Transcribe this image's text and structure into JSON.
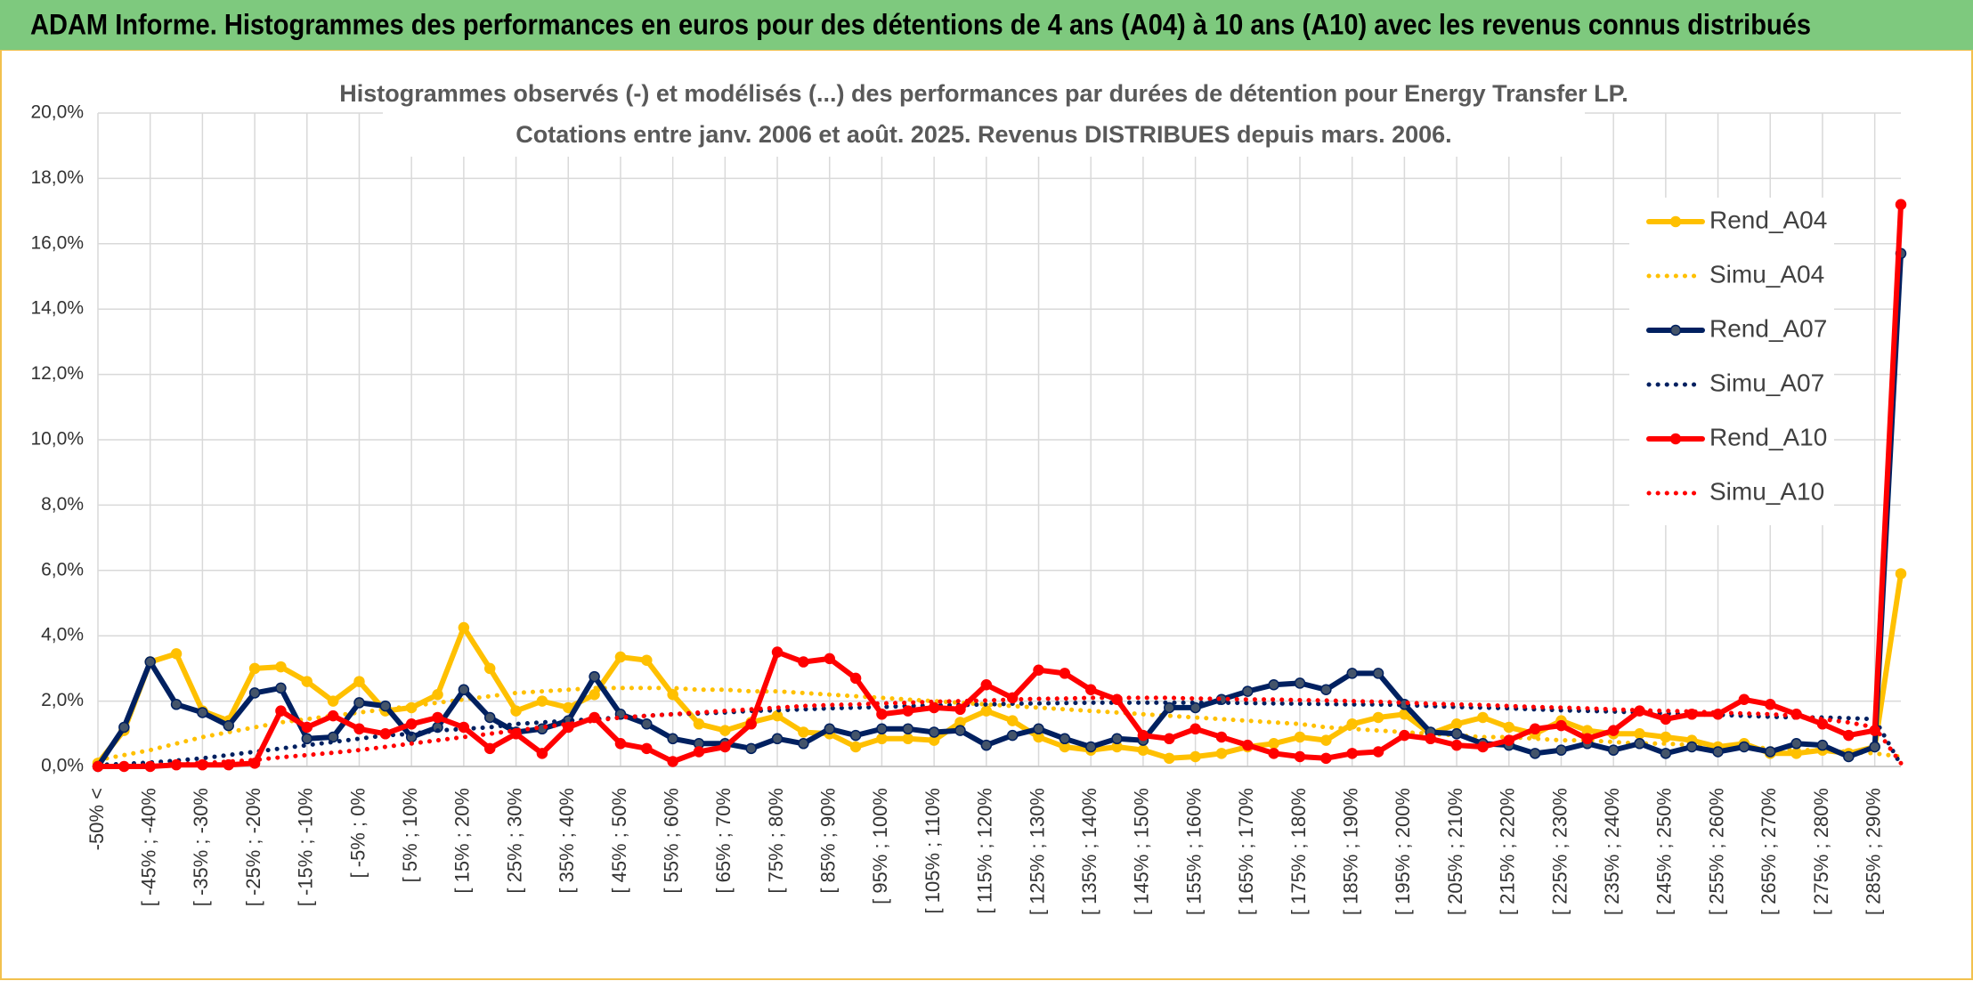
{
  "chart_data": {
    "type": "line",
    "title": "ADAM Informe. Histogrammes des performances en euros pour des détentions de 4 ans (A04) à 10 ans (A10) avec les revenus connus distribués",
    "subtitle": [
      "Histogrammes observés (-) et modélisés (...) des performances par durées de détention pour Energy Transfer LP.",
      "Cotations entre janv. 2006 et août. 2025. Revenus DISTRIBUES depuis mars. 2006."
    ],
    "categories": [
      "-50% <",
      null,
      "[ -45% ; -40%",
      null,
      "[ -35% ; -30%",
      null,
      "[ -25% ; -20%",
      null,
      "[ -15% ; -10%",
      null,
      "[ -5% ; 0%",
      null,
      "[ 5% ; 10%",
      null,
      "[ 15% ; 20%",
      null,
      "[ 25% ; 30%",
      null,
      "[ 35% ; 40%",
      null,
      "[ 45% ; 50%",
      null,
      "[ 55% ; 60%",
      null,
      "[ 65% ; 70%",
      null,
      "[ 75% ; 80%",
      null,
      "[ 85% ; 90%",
      null,
      "[ 95% ; 100%",
      null,
      "[ 105% ; 110%",
      null,
      "[ 115% ; 120%",
      null,
      "[ 125% ; 130%",
      null,
      "[ 135% ; 140%",
      null,
      "[ 145% ; 150%",
      null,
      "[ 155% ; 160%",
      null,
      "[ 165% ; 170%",
      null,
      "[ 175% ; 180%",
      null,
      "[ 185% ; 190%",
      null,
      "[ 195% ; 200%",
      null,
      "[ 205% ; 210%",
      null,
      "[ 215% ; 220%",
      null,
      "[ 225% ; 230%",
      null,
      "[ 235% ; 240%",
      null,
      "[ 245% ; 250%",
      null,
      "[ 255% ; 260%",
      null,
      "[ 265% ; 270%",
      null,
      "[ 275% ; 280%",
      null,
      "[ 285% ; 290%",
      null
    ],
    "ylim": [
      0,
      20
    ],
    "yticks": [
      {
        "value": 0,
        "label": "0,0%"
      },
      {
        "value": 2,
        "label": "2,0%"
      },
      {
        "value": 4,
        "label": "4,0%"
      },
      {
        "value": 6,
        "label": "6,0%"
      },
      {
        "value": 8,
        "label": "8,0%"
      },
      {
        "value": 10,
        "label": "10,0%"
      },
      {
        "value": 12,
        "label": "12,0%"
      },
      {
        "value": 14,
        "label": "14,0%"
      },
      {
        "value": 16,
        "label": "16,0%"
      },
      {
        "value": 18,
        "label": "18,0%"
      },
      {
        "value": 20,
        "label": "20,0%"
      }
    ],
    "grid": true,
    "legend": "right",
    "series": [
      {
        "name": "Rend_A04",
        "color": "#FFC000",
        "line_style": "solid",
        "marker": true,
        "marker_color": "#FFC000",
        "values": [
          0.1,
          1.1,
          3.2,
          3.45,
          1.7,
          1.4,
          3.0,
          3.05,
          2.6,
          2.0,
          2.6,
          1.7,
          1.8,
          2.2,
          4.25,
          3.0,
          1.7,
          2.0,
          1.8,
          2.2,
          3.35,
          3.25,
          2.2,
          1.3,
          1.1,
          1.35,
          1.55,
          1.05,
          1.0,
          0.6,
          0.85,
          0.85,
          0.8,
          1.35,
          1.7,
          1.4,
          0.9,
          0.6,
          0.5,
          0.6,
          0.5,
          0.25,
          0.3,
          0.4,
          0.6,
          0.7,
          0.9,
          0.8,
          1.3,
          1.5,
          1.6,
          1.0,
          1.3,
          1.5,
          1.2,
          1.0,
          1.4,
          1.1,
          1.0,
          1.0,
          0.9,
          0.8,
          0.6,
          0.7,
          0.4,
          0.4,
          0.5,
          0.4,
          0.6,
          5.9
        ]
      },
      {
        "name": "Simu_A04",
        "color": "#FFC000",
        "line_style": "dotted",
        "marker": false,
        "values": [
          0.2,
          0.35,
          0.5,
          0.7,
          0.9,
          1.05,
          1.2,
          1.35,
          1.45,
          1.55,
          1.65,
          1.75,
          1.85,
          1.95,
          2.05,
          2.15,
          2.25,
          2.3,
          2.35,
          2.4,
          2.4,
          2.4,
          2.4,
          2.35,
          2.35,
          2.3,
          2.3,
          2.25,
          2.2,
          2.15,
          2.1,
          2.05,
          2.0,
          1.95,
          1.9,
          1.85,
          1.8,
          1.75,
          1.7,
          1.65,
          1.6,
          1.55,
          1.5,
          1.45,
          1.4,
          1.35,
          1.3,
          1.2,
          1.15,
          1.1,
          1.05,
          1.0,
          0.95,
          0.9,
          0.9,
          0.85,
          0.8,
          0.8,
          0.75,
          0.7,
          0.7,
          0.65,
          0.6,
          0.6,
          0.55,
          0.5,
          0.5,
          0.45,
          0.4,
          0.3
        ]
      },
      {
        "name": "Rend_A07",
        "color": "#002060",
        "line_style": "solid",
        "marker": true,
        "marker_color": "#44546A",
        "values": [
          0.0,
          1.2,
          3.2,
          1.9,
          1.65,
          1.25,
          2.25,
          2.4,
          0.85,
          0.9,
          1.95,
          1.85,
          0.9,
          1.2,
          2.35,
          1.5,
          1.05,
          1.15,
          1.4,
          2.75,
          1.6,
          1.3,
          0.85,
          0.7,
          0.7,
          0.55,
          0.85,
          0.7,
          1.15,
          0.95,
          1.15,
          1.15,
          1.05,
          1.1,
          0.65,
          0.95,
          1.15,
          0.85,
          0.6,
          0.85,
          0.8,
          1.8,
          1.8,
          2.05,
          2.3,
          2.5,
          2.55,
          2.35,
          2.85,
          2.85,
          1.9,
          1.05,
          1.0,
          0.7,
          0.65,
          0.4,
          0.5,
          0.7,
          0.5,
          0.7,
          0.4,
          0.6,
          0.45,
          0.6,
          0.45,
          0.7,
          0.65,
          0.3,
          0.6,
          15.7
        ]
      },
      {
        "name": "Simu_A07",
        "color": "#002060",
        "line_style": "dotted",
        "marker": false,
        "values": [
          0.05,
          0.08,
          0.12,
          0.18,
          0.25,
          0.35,
          0.45,
          0.55,
          0.65,
          0.75,
          0.85,
          0.95,
          1.0,
          1.1,
          1.15,
          1.2,
          1.3,
          1.35,
          1.4,
          1.45,
          1.5,
          1.55,
          1.6,
          1.62,
          1.65,
          1.7,
          1.72,
          1.75,
          1.78,
          1.8,
          1.82,
          1.85,
          1.87,
          1.88,
          1.9,
          1.92,
          1.93,
          1.94,
          1.95,
          1.95,
          1.95,
          1.95,
          1.95,
          1.95,
          1.94,
          1.93,
          1.92,
          1.91,
          1.9,
          1.9,
          1.88,
          1.85,
          1.82,
          1.8,
          1.78,
          1.75,
          1.72,
          1.7,
          1.68,
          1.65,
          1.62,
          1.6,
          1.58,
          1.55,
          1.52,
          1.5,
          1.5,
          1.48,
          1.45,
          0.05
        ]
      },
      {
        "name": "Rend_A10",
        "color": "#FF0000",
        "line_style": "solid",
        "marker": true,
        "marker_color": "#FF0000",
        "values": [
          0.0,
          0.0,
          0.0,
          0.05,
          0.05,
          0.05,
          0.1,
          1.7,
          1.2,
          1.55,
          1.15,
          1.0,
          1.3,
          1.5,
          1.2,
          0.55,
          1.0,
          0.4,
          1.2,
          1.5,
          0.7,
          0.55,
          0.15,
          0.45,
          0.6,
          1.3,
          3.5,
          3.2,
          3.3,
          2.7,
          1.6,
          1.7,
          1.8,
          1.75,
          2.5,
          2.1,
          2.95,
          2.85,
          2.35,
          2.05,
          0.95,
          0.85,
          1.15,
          0.9,
          0.65,
          0.4,
          0.3,
          0.25,
          0.4,
          0.45,
          0.95,
          0.85,
          0.65,
          0.6,
          0.8,
          1.15,
          1.25,
          0.85,
          1.1,
          1.7,
          1.45,
          1.6,
          1.6,
          2.05,
          1.9,
          1.6,
          1.3,
          0.95,
          1.1,
          17.2
        ]
      },
      {
        "name": "Simu_A10",
        "color": "#FF0000",
        "line_style": "dotted",
        "marker": false,
        "values": [
          0.0,
          0.02,
          0.04,
          0.07,
          0.1,
          0.15,
          0.2,
          0.28,
          0.35,
          0.42,
          0.5,
          0.6,
          0.7,
          0.8,
          0.9,
          1.0,
          1.1,
          1.2,
          1.3,
          1.4,
          1.5,
          1.55,
          1.6,
          1.65,
          1.7,
          1.75,
          1.8,
          1.85,
          1.88,
          1.9,
          1.93,
          1.95,
          1.98,
          2.0,
          2.02,
          2.05,
          2.07,
          2.08,
          2.1,
          2.1,
          2.1,
          2.1,
          2.08,
          2.07,
          2.05,
          2.05,
          2.03,
          2.02,
          2.0,
          1.98,
          1.95,
          1.92,
          1.9,
          1.88,
          1.85,
          1.82,
          1.8,
          1.78,
          1.75,
          1.72,
          1.7,
          1.68,
          1.65,
          1.62,
          1.6,
          1.55,
          1.45,
          1.35,
          1.2,
          0.1
        ]
      }
    ]
  }
}
